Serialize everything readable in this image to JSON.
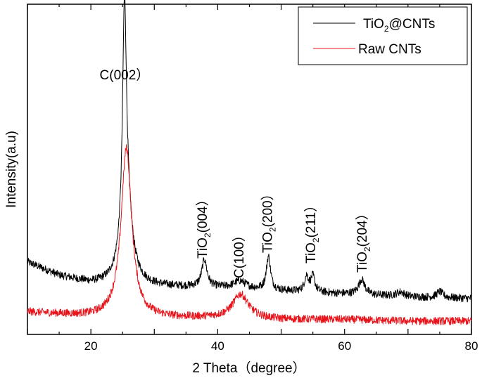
{
  "chart_data": {
    "type": "line",
    "title": "",
    "xlabel": "2 Theta（degree）",
    "ylabel": "Intensity(a.u)",
    "xlim": [
      10,
      80
    ],
    "ylim": [
      0,
      100
    ],
    "x_ticks": [
      20,
      40,
      60,
      80
    ],
    "x_tick_labels": [
      "20",
      "40",
      "60",
      "80"
    ],
    "grid": false,
    "legend_position": "top-right",
    "colors": {
      "TiO2@CNTs": "#000000",
      "Raw CNTs": "#e8141b"
    },
    "series": [
      {
        "name": "TiO2@CNTs",
        "color": "#000000",
        "baseline": [
          [
            10,
            22.5
          ],
          [
            15,
            18
          ],
          [
            20,
            15.5
          ],
          [
            30,
            14.5
          ],
          [
            40,
            14
          ],
          [
            50,
            13
          ],
          [
            60,
            12
          ],
          [
            70,
            11
          ],
          [
            80,
            10.5
          ]
        ],
        "peaks": [
          {
            "x": 25.3,
            "height": 71,
            "width": 0.35
          },
          {
            "x": 25.6,
            "height": 28,
            "width": 1.0
          },
          {
            "x": 37.9,
            "height": 9,
            "width": 0.5
          },
          {
            "x": 43.5,
            "height": 2.5,
            "width": 1.2
          },
          {
            "x": 48.0,
            "height": 11,
            "width": 0.4
          },
          {
            "x": 54.0,
            "height": 5,
            "width": 0.4
          },
          {
            "x": 55.0,
            "height": 5,
            "width": 0.4
          },
          {
            "x": 62.7,
            "height": 5,
            "width": 0.6
          },
          {
            "x": 68.8,
            "height": 1.5,
            "width": 0.8
          },
          {
            "x": 75.0,
            "height": 2,
            "width": 0.6
          }
        ]
      },
      {
        "name": "Raw CNTs",
        "color": "#e8141b",
        "baseline": [
          [
            10,
            6
          ],
          [
            20,
            4.5
          ],
          [
            30,
            4
          ],
          [
            40,
            4
          ],
          [
            50,
            3.5
          ],
          [
            60,
            3.5
          ],
          [
            70,
            3
          ],
          [
            80,
            3
          ]
        ],
        "peaks": [
          {
            "x": 25.6,
            "height": 56,
            "width": 1.0
          },
          {
            "x": 43.6,
            "height": 8,
            "width": 1.5
          }
        ]
      }
    ],
    "annotations": [
      {
        "text": "C(002）",
        "x": 25.3,
        "orientation": "horizontal"
      },
      {
        "text": "TiO2(004）",
        "x": 37.5,
        "orientation": "vertical"
      },
      {
        "text": "C(100）",
        "x": 43.3,
        "orientation": "vertical"
      },
      {
        "text": "TiO2(200）",
        "x": 47.8,
        "orientation": "vertical"
      },
      {
        "text": "TiO2(211）",
        "x": 54.6,
        "orientation": "vertical"
      },
      {
        "text": "TiO2(204）",
        "x": 62.7,
        "orientation": "vertical"
      }
    ]
  }
}
